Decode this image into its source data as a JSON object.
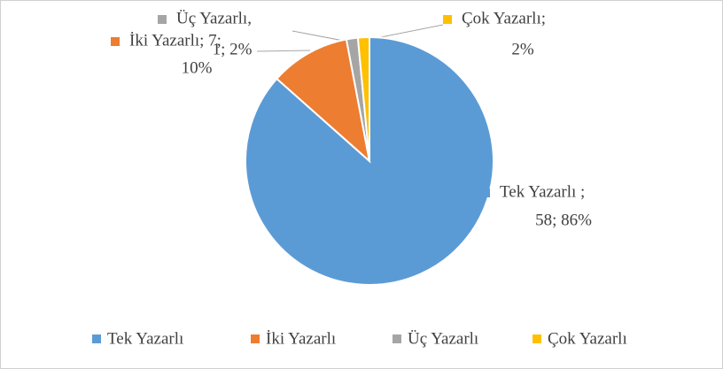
{
  "chart_data": {
    "type": "pie",
    "categories": [
      "Tek Yazarlı",
      "İki Yazarlı",
      "Üç Yazarlı",
      "Çok Yazarlı"
    ],
    "values": [
      58,
      7,
      1,
      1
    ],
    "value_labels": [
      [
        "Tek Yazarlı ;",
        "58; 86%"
      ],
      [
        "İki Yazarlı; 7;",
        "10%"
      ],
      [
        "Üç Yazarlı,",
        "1; 2%"
      ],
      [
        "Çok Yazarlı;",
        "2%"
      ]
    ],
    "colors": [
      "#5b9bd5",
      "#ed7d31",
      "#a5a5a5",
      "#ffc000"
    ],
    "legend": "bottom"
  }
}
